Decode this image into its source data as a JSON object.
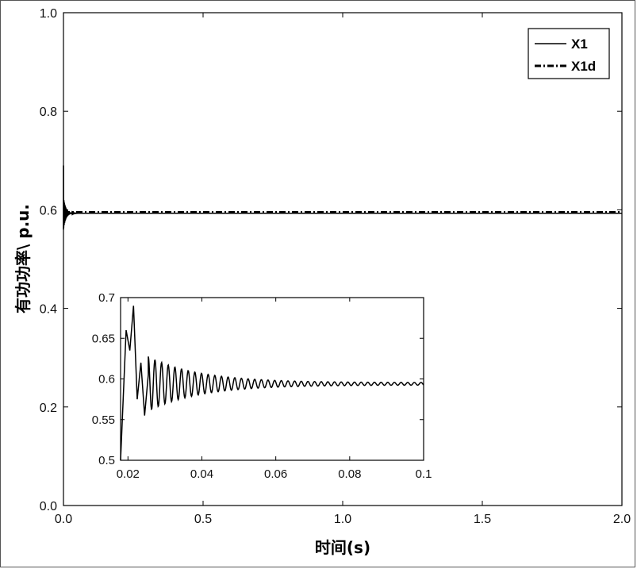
{
  "chart_data": [
    {
      "type": "line",
      "xlabel": "时间(s)",
      "ylabel": "有功功率\\ p.u.",
      "xlim": [
        0,
        2
      ],
      "ylim": [
        0,
        1
      ],
      "xticks": [
        "0.0",
        "0.5",
        "1.0",
        "1.5",
        "2.0"
      ],
      "yticks": [
        "0.0",
        "0.2",
        "0.4",
        "0.6",
        "0.8",
        "1.0"
      ],
      "legend_position": "top-right",
      "series": [
        {
          "name": "X1",
          "style": "solid",
          "x": [
            0.0,
            0.01,
            0.015,
            0.018,
            0.02,
            0.022,
            0.025,
            0.03,
            0.04,
            0.05,
            0.1,
            0.5,
            1.0,
            1.5,
            2.0
          ],
          "y": [
            0.5,
            0.55,
            0.6,
            0.66,
            0.64,
            0.69,
            0.56,
            0.61,
            0.595,
            0.593,
            0.593,
            0.593,
            0.593,
            0.593,
            0.593
          ]
        },
        {
          "name": "X1d",
          "style": "dash-dot",
          "x": [
            0.0,
            0.5,
            1.0,
            1.5,
            2.0
          ],
          "y": [
            0.595,
            0.595,
            0.595,
            0.595,
            0.595
          ]
        }
      ]
    },
    {
      "type": "line",
      "role": "inset",
      "xlim": [
        0.018,
        0.1
      ],
      "ylim": [
        0.5,
        0.7
      ],
      "xticks": [
        "0.02",
        "0.04",
        "0.06",
        "0.08",
        "0.1"
      ],
      "yticks": [
        "0.5",
        "0.55",
        "0.6",
        "0.65",
        "0.7"
      ],
      "series": [
        {
          "name": "X1",
          "x": [
            0.018,
            0.0195,
            0.0205,
            0.0215,
            0.0225,
            0.0235,
            0.0245,
            0.0255,
            0.027,
            0.03,
            0.035,
            0.04,
            0.05,
            0.06,
            0.07,
            0.08,
            0.09,
            0.1
          ],
          "y": [
            0.5,
            0.66,
            0.635,
            0.69,
            0.575,
            0.62,
            0.555,
            0.605,
            0.575,
            0.61,
            0.585,
            0.605,
            0.598,
            0.595,
            0.594,
            0.594,
            0.594,
            0.594
          ]
        }
      ]
    }
  ]
}
